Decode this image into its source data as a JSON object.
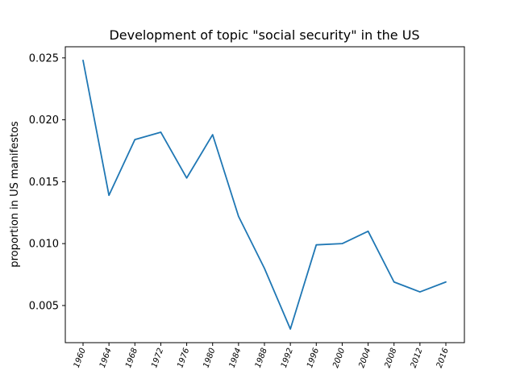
{
  "chart_data": {
    "type": "line",
    "title": "Development of topic \"social security\" in the US",
    "xlabel": "",
    "ylabel": "proportion in US manifestos",
    "x": [
      "1960",
      "1964",
      "1968",
      "1972",
      "1976",
      "1980",
      "1984",
      "1988",
      "1992",
      "1996",
      "2000",
      "2004",
      "2008",
      "2012",
      "2016"
    ],
    "series": [
      {
        "values": [
          0.0248,
          0.0139,
          0.0184,
          0.019,
          0.0153,
          0.0188,
          0.0122,
          0.008,
          0.0031,
          0.0099,
          0.01,
          0.011,
          0.0069,
          0.0061,
          0.0069
        ],
        "color": "#1f77b4"
      }
    ],
    "yticks": [
      0.005,
      0.01,
      0.015,
      0.02,
      0.025
    ],
    "ytick_labels": [
      "0.005",
      "0.010",
      "0.015",
      "0.020",
      "0.025"
    ],
    "ylim": [
      0.002,
      0.0259
    ],
    "grid": false
  }
}
